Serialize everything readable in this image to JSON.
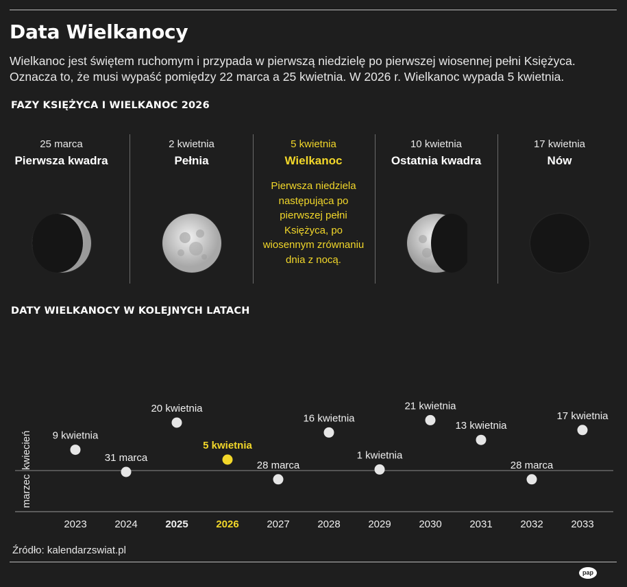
{
  "header": {
    "title": "Data Wielkanocy",
    "intro_line1": "Wielkanoc jest świętem ruchomym i przypada w pierwszą niedzielę po pierwszej wiosennej pełni Księżyca.",
    "intro_line2": "Oznacza to, że musi wypaść pomiędzy 22 marca a 25 kwietnia. W 2026 r. Wielkanoc wypada 5 kwietnia."
  },
  "phases_section": {
    "title": "FAZY KSIĘŻYCA I WIELKANOC 2026",
    "items": [
      {
        "date": "25 marca",
        "name": "Pierwsza kwadra",
        "moon": "first-quarter"
      },
      {
        "date": "2 kwietnia",
        "name": "Pełnia",
        "moon": "full"
      },
      {
        "date": "5 kwietnia",
        "name": "Wielkanoc",
        "highlight": true,
        "description": "Pierwsza niedziela następująca po pierwszej pełni Księżyca, po wiosennym zrównaniu dnia z nocą."
      },
      {
        "date": "10 kwietnia",
        "name": "Ostatnia kwadra",
        "moon": "last-quarter"
      },
      {
        "date": "17 kwietnia",
        "name": "Nów",
        "moon": "new"
      }
    ]
  },
  "timeline_section": {
    "title": "DATY WIELKANOCY W KOLEJNYCH LATACH"
  },
  "chart_data": {
    "type": "scatter",
    "y_axis_bands": [
      "marzec",
      "kwiecień"
    ],
    "y_unit": "days after 21 March",
    "y_range": [
      0,
      32
    ],
    "band_boundary": 10.5,
    "highlight_color": "#f2d72a",
    "points": [
      {
        "year": "2023",
        "label": "9 kwietnia",
        "days": 19,
        "bold": false
      },
      {
        "year": "2024",
        "label": "31 marca",
        "days": 10,
        "bold": false
      },
      {
        "year": "2025",
        "label": "20 kwietnia",
        "days": 30,
        "bold": true
      },
      {
        "year": "2026",
        "label": "5 kwietnia",
        "days": 15,
        "bold": true,
        "highlight": true
      },
      {
        "year": "2027",
        "label": "28 marca",
        "days": 7,
        "bold": false
      },
      {
        "year": "2028",
        "label": "16 kwietnia",
        "days": 26,
        "bold": false
      },
      {
        "year": "2029",
        "label": "1 kwietnia",
        "days": 11,
        "bold": false
      },
      {
        "year": "2030",
        "label": "21 kwietnia",
        "days": 31,
        "bold": false
      },
      {
        "year": "2031",
        "label": "13 kwietnia",
        "days": 23,
        "bold": false
      },
      {
        "year": "2032",
        "label": "28 marca",
        "days": 7,
        "bold": false
      },
      {
        "year": "2033",
        "label": "17 kwietnia",
        "days": 27,
        "bold": false
      }
    ]
  },
  "footer": {
    "source": "Źródło: kalendarzswiat.pl",
    "logo": "pap"
  }
}
